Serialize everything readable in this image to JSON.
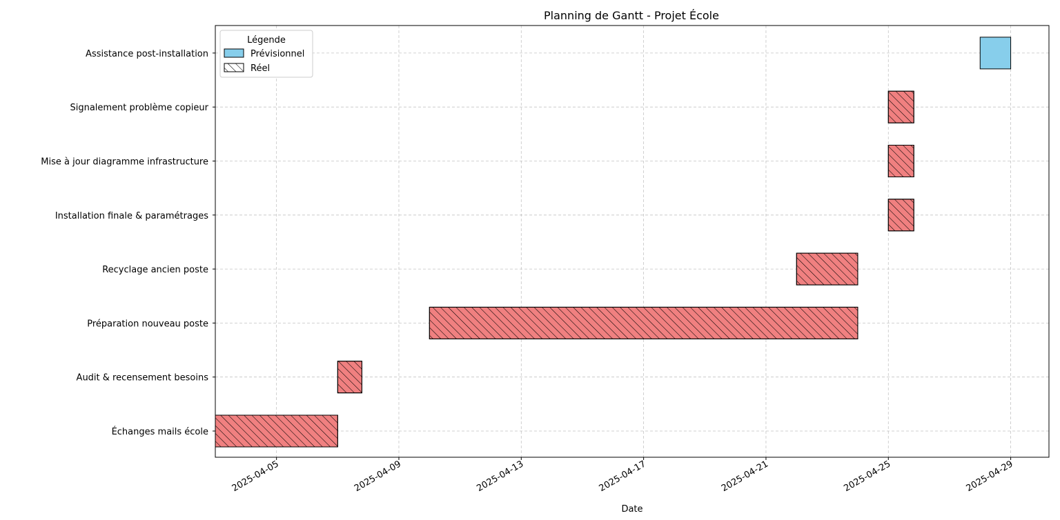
{
  "chart_data": {
    "type": "bar",
    "orientation": "horizontal-gantt",
    "title": "Planning de Gantt - Projet École",
    "xlabel": "Date",
    "ylabel": "",
    "xlim": [
      "2025-04-03",
      "2025-04-30 06:00"
    ],
    "x_ticks": [
      "2025-04-05",
      "2025-04-09",
      "2025-04-13",
      "2025-04-17",
      "2025-04-21",
      "2025-04-25",
      "2025-04-29"
    ],
    "grid": true,
    "legend": {
      "title": "Légende",
      "position": "top-left",
      "entries": [
        {
          "label": "Prévisionnel",
          "color": "#87CEEB",
          "pattern": "solid"
        },
        {
          "label": "Réel",
          "color": "#ffffff",
          "pattern": "hatched"
        }
      ]
    },
    "colors": {
      "planned": "#87CEEB",
      "actual": "#F08080"
    },
    "tasks": [
      {
        "name": "Échanges mails école",
        "kind": "actual",
        "start": "2025-04-03",
        "end": "2025-04-07"
      },
      {
        "name": "Audit & recensement besoins",
        "kind": "actual",
        "start": "2025-04-07",
        "end": "2025-04-07 19:00"
      },
      {
        "name": "Préparation nouveau poste",
        "kind": "actual",
        "start": "2025-04-10",
        "end": "2025-04-24"
      },
      {
        "name": "Recyclage ancien poste",
        "kind": "actual",
        "start": "2025-04-22",
        "end": "2025-04-24"
      },
      {
        "name": "Installation finale & paramétrages",
        "kind": "actual",
        "start": "2025-04-25",
        "end": "2025-04-25 20:00"
      },
      {
        "name": "Mise à jour diagramme infrastructure",
        "kind": "actual",
        "start": "2025-04-25",
        "end": "2025-04-25 20:00"
      },
      {
        "name": "Signalement problème copieur",
        "kind": "actual",
        "start": "2025-04-25",
        "end": "2025-04-25 20:00"
      },
      {
        "name": "Assistance post-installation",
        "kind": "planned",
        "start": "2025-04-28",
        "end": "2025-04-29"
      }
    ]
  }
}
